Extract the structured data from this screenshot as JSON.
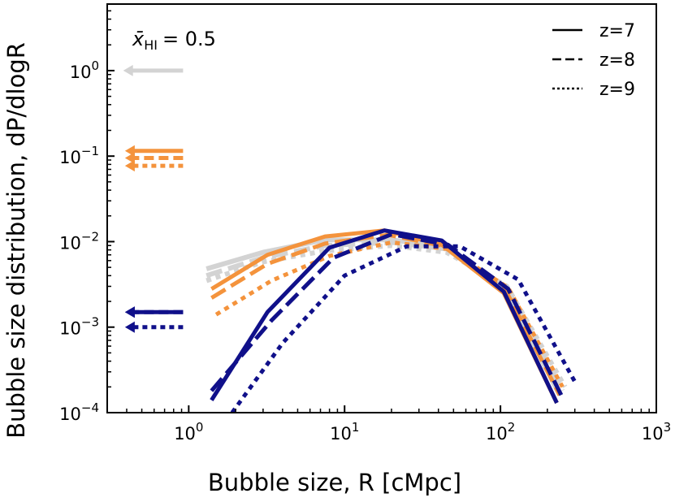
{
  "chart_data": {
    "type": "line",
    "title": "",
    "xlabel": "Bubble size, R [cMpc]",
    "ylabel": "Bubble size distribution, dP/dlogR",
    "xscale": "log",
    "yscale": "log",
    "xlim": [
      0.3,
      1000
    ],
    "ylim": [
      0.0001,
      6
    ],
    "grid": false,
    "xticks": [
      {
        "value": 1,
        "base": "10",
        "exp": "0"
      },
      {
        "value": 10,
        "base": "10",
        "exp": "1"
      },
      {
        "value": 100,
        "base": "10",
        "exp": "2"
      },
      {
        "value": 1000,
        "base": "10",
        "exp": "3"
      }
    ],
    "yticks": [
      {
        "value": 0.0001,
        "base": "10",
        "exp": "−4"
      },
      {
        "value": 0.001,
        "base": "10",
        "exp": "−3"
      },
      {
        "value": 0.01,
        "base": "10",
        "exp": "−2"
      },
      {
        "value": 0.1,
        "base": "10",
        "exp": "−1"
      },
      {
        "value": 1,
        "base": "10",
        "exp": "0"
      }
    ],
    "annotation": {
      "symbol": "x̄",
      "subscript": "HI",
      "text": "= 0.5"
    },
    "legend": {
      "position": "upper-right",
      "entries": [
        {
          "label": "z=7",
          "dash": "solid"
        },
        {
          "label": "z=8",
          "dash": "dashed"
        },
        {
          "label": "z=9",
          "dash": "dotted"
        }
      ]
    },
    "colors": {
      "gray": "#d3d3d3",
      "orange": "#f4933c",
      "navy": "#10108a"
    },
    "arrows": [
      {
        "color": "gray",
        "dash": "solid",
        "y": 1.0,
        "x_from": 0.92,
        "x_to": 0.38
      },
      {
        "color": "orange",
        "dash": "solid",
        "y": 0.115,
        "x_from": 0.92,
        "x_to": 0.39
      },
      {
        "color": "orange",
        "dash": "dashed",
        "y": 0.095,
        "x_from": 0.92,
        "x_to": 0.39
      },
      {
        "color": "orange",
        "dash": "dotted",
        "y": 0.077,
        "x_from": 0.92,
        "x_to": 0.39
      },
      {
        "color": "navy",
        "dash": "solid",
        "y": 0.0015,
        "x_from": 0.92,
        "x_to": 0.39
      },
      {
        "color": "navy",
        "dash": "dashed",
        "y": 0.0015,
        "x_from": 0.92,
        "x_to": 0.39
      },
      {
        "color": "navy",
        "dash": "dotted",
        "y": 0.001,
        "x_from": 0.92,
        "x_to": 0.39
      }
    ],
    "series": [
      {
        "color": "gray",
        "dash": "solid",
        "x": [
          1.3,
          3.0,
          7.5,
          20,
          45,
          110,
          240
        ],
        "y": [
          0.0048,
          0.0075,
          0.0105,
          0.0105,
          0.0085,
          0.0026,
          0.00016
        ]
      },
      {
        "color": "gray",
        "dash": "dashed",
        "x": [
          1.3,
          3.0,
          7.5,
          20,
          45,
          110,
          250
        ],
        "y": [
          0.004,
          0.0065,
          0.009,
          0.0098,
          0.0082,
          0.0028,
          0.00018
        ]
      },
      {
        "color": "gray",
        "dash": "dotted",
        "x": [
          1.3,
          3.0,
          7.5,
          20,
          45,
          110,
          260
        ],
        "y": [
          0.0035,
          0.0058,
          0.0078,
          0.009,
          0.0075,
          0.003,
          0.0002
        ]
      },
      {
        "color": "orange",
        "dash": "solid",
        "x": [
          1.4,
          3.2,
          7.5,
          18,
          42,
          105,
          230
        ],
        "y": [
          0.0028,
          0.007,
          0.0115,
          0.0135,
          0.0092,
          0.0025,
          0.00013
        ]
      },
      {
        "color": "orange",
        "dash": "dashed",
        "x": [
          1.4,
          3.2,
          7.5,
          19,
          44,
          108,
          240
        ],
        "y": [
          0.0022,
          0.0055,
          0.0095,
          0.012,
          0.0088,
          0.0027,
          0.00016
        ]
      },
      {
        "color": "orange",
        "dash": "dotted",
        "x": [
          1.5,
          3.4,
          8.0,
          20,
          46,
          112,
          250
        ],
        "y": [
          0.0014,
          0.0035,
          0.0068,
          0.0098,
          0.0082,
          0.0029,
          0.0002
        ]
      },
      {
        "color": "navy",
        "dash": "solid",
        "x": [
          1.4,
          3.2,
          8.0,
          18,
          42,
          105,
          230
        ],
        "y": [
          0.00014,
          0.0015,
          0.0085,
          0.0135,
          0.0103,
          0.0026,
          0.00013
        ]
      },
      {
        "color": "navy",
        "dash": "dashed",
        "x": [
          1.4,
          3.4,
          8.5,
          20,
          46,
          112,
          250
        ],
        "y": [
          0.00018,
          0.0012,
          0.0065,
          0.0122,
          0.0092,
          0.0028,
          0.00015
        ]
      },
      {
        "color": "navy",
        "dash": "dotted",
        "x": [
          1.9,
          4.0,
          10,
          25,
          55,
          130,
          300
        ],
        "y": [
          0.0001,
          0.00065,
          0.004,
          0.0088,
          0.0088,
          0.0036,
          0.00023
        ]
      }
    ]
  }
}
